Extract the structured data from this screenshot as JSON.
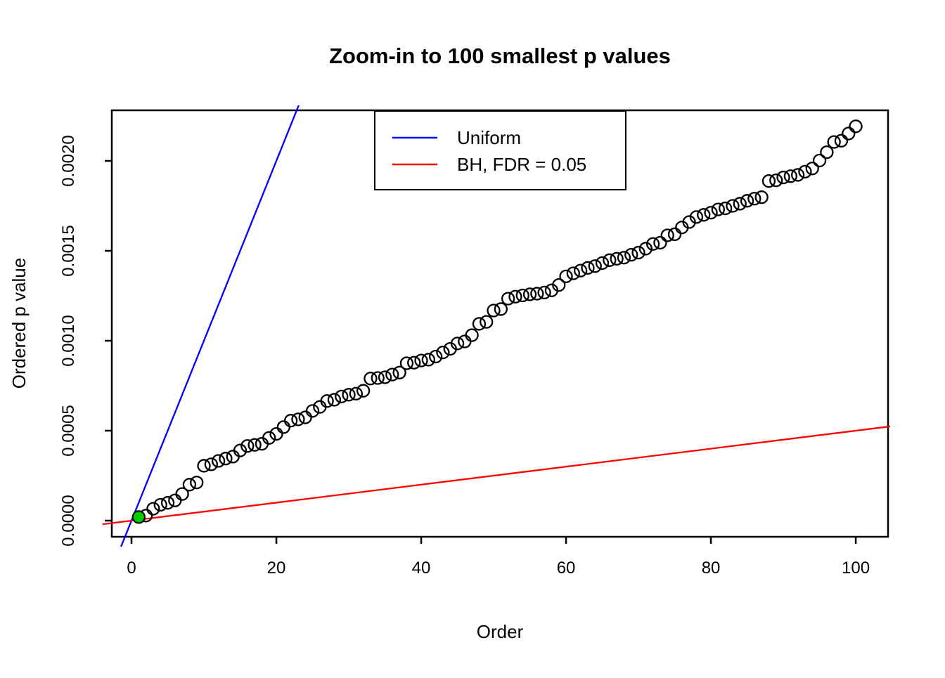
{
  "title": "Zoom-in to 100 smallest p values",
  "axes": {
    "x_label": "Order",
    "y_label": "Ordered p value"
  },
  "legend": {
    "entries": [
      {
        "label": "Uniform",
        "color": "#0000FF"
      },
      {
        "label": "BH, FDR = 0.05",
        "color": "#FF0000"
      }
    ]
  },
  "chart_data": {
    "type": "scatter",
    "title": "Zoom-in to 100 smallest p values",
    "xlabel": "Order",
    "ylabel": "Ordered p value",
    "xlim": [
      -2.72,
      104.46
    ],
    "ylim": [
      -8.98e-05,
      0.0022812
    ],
    "x_ticks": [
      0,
      20,
      40,
      60,
      80,
      100
    ],
    "x_tick_labels": [
      "0",
      "20",
      "40",
      "60",
      "80",
      "100"
    ],
    "y_ticks": [
      0,
      0.0005,
      0.001,
      0.0015,
      0.002
    ],
    "y_tick_labels": [
      "0.0000",
      "0.0005",
      "0.0010",
      "0.0015",
      "0.0020"
    ],
    "grid": false,
    "legend_position": "top-center-inside",
    "point_style": "open-circle",
    "point_color": "#000000",
    "x": [
      1,
      2,
      3,
      4,
      5,
      6,
      7,
      8,
      9,
      10,
      11,
      12,
      13,
      14,
      15,
      16,
      17,
      18,
      19,
      20,
      21,
      22,
      23,
      24,
      25,
      26,
      27,
      28,
      29,
      30,
      31,
      32,
      33,
      34,
      35,
      36,
      37,
      38,
      39,
      40,
      41,
      42,
      43,
      44,
      45,
      46,
      47,
      48,
      49,
      50,
      51,
      52,
      53,
      54,
      55,
      56,
      57,
      58,
      59,
      60,
      61,
      62,
      63,
      64,
      65,
      66,
      67,
      68,
      69,
      70,
      71,
      72,
      73,
      74,
      75,
      76,
      77,
      78,
      79,
      80,
      81,
      82,
      83,
      84,
      85,
      86,
      87,
      88,
      89,
      90,
      91,
      92,
      93,
      94,
      95,
      96,
      97,
      98,
      99,
      100
    ],
    "values": [
      2e-05,
      2.8e-05,
      6.6e-05,
      8.8e-05,
      9.9e-05,
      0.000112,
      0.000148,
      0.0002,
      0.000212,
      0.000305,
      0.000313,
      0.000332,
      0.000345,
      0.000356,
      0.00039,
      0.000415,
      0.000421,
      0.000427,
      0.00046,
      0.000482,
      0.00052,
      0.000556,
      0.000563,
      0.000574,
      0.00061,
      0.000632,
      0.000665,
      0.000672,
      0.00069,
      0.0007,
      0.000706,
      0.000722,
      0.00079,
      0.000793,
      0.000797,
      0.000812,
      0.000823,
      0.000875,
      0.000878,
      0.00089,
      0.000895,
      0.000912,
      0.000935,
      0.000955,
      0.000985,
      0.000996,
      0.001031,
      0.001094,
      0.001105,
      0.001168,
      0.001176,
      0.001234,
      0.001245,
      0.001252,
      0.001258,
      0.001262,
      0.001268,
      0.00128,
      0.00131,
      0.001358,
      0.001375,
      0.00139,
      0.001405,
      0.001415,
      0.001432,
      0.001448,
      0.001456,
      0.001462,
      0.001478,
      0.00149,
      0.001512,
      0.001538,
      0.001545,
      0.001586,
      0.001592,
      0.00163,
      0.00166,
      0.001688,
      0.0017,
      0.001712,
      0.00173,
      0.001736,
      0.00175,
      0.001762,
      0.001778,
      0.00179,
      0.001798,
      0.001888,
      0.001892,
      0.001908,
      0.001915,
      0.001922,
      0.00194,
      0.001958,
      0.002002,
      0.002048,
      0.002105,
      0.002112,
      0.002152,
      0.002192
    ],
    "highlight_points": [
      {
        "x": 1,
        "y": 2e-05,
        "color": "#00CD00",
        "meaning": "BH-significant p value"
      }
    ],
    "lines": [
      {
        "name": "Uniform",
        "color": "#0000FF",
        "slope": 0.0001,
        "intercept": 0
      },
      {
        "name": "BH, FDR = 0.05",
        "color": "#FF0000",
        "slope": 5e-06,
        "intercept": 0
      }
    ]
  }
}
